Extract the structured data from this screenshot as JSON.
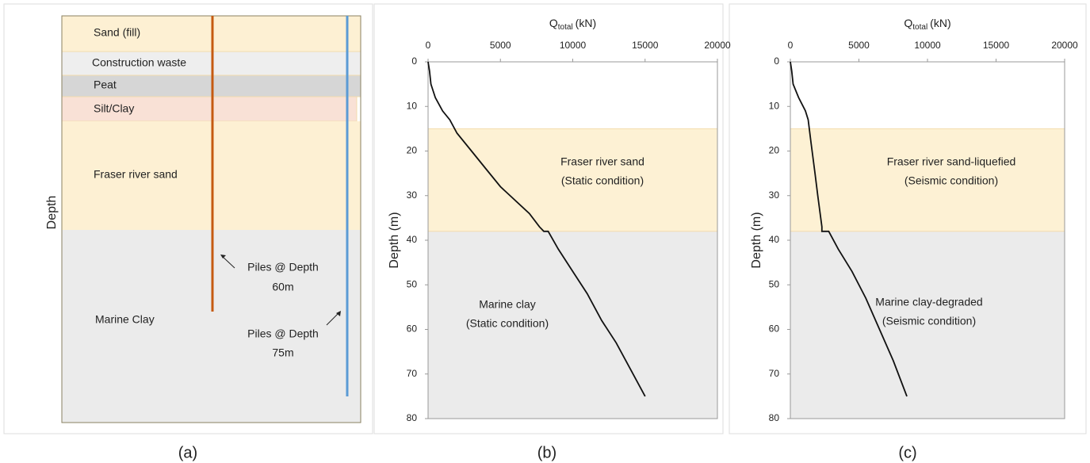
{
  "diagram": {
    "layers": [
      "Sand (fill)",
      "Construction waste",
      "Peat",
      "Silt/Clay",
      "Fraser river sand",
      "Marine Clay"
    ],
    "axis_label": "Depth",
    "piles": [
      {
        "lines": [
          "Piles @ Depth",
          "60m"
        ]
      },
      {
        "lines": [
          "Piles @ Depth",
          "75m"
        ]
      }
    ]
  },
  "captions": [
    "(a)",
    "(b)",
    "(c)"
  ],
  "chart_data": [
    {
      "type": "line",
      "xlabel": {
        "main": "Q",
        "sub": "total",
        "unit": "(kN)"
      },
      "ylabel": "Depth (m)",
      "xlim": [
        0,
        20000
      ],
      "xticks": [
        0,
        5000,
        10000,
        15000,
        20000
      ],
      "ylim": [
        0,
        80
      ],
      "yticks": [
        0,
        10,
        20,
        30,
        40,
        50,
        60,
        70,
        80
      ],
      "y_inverted": true,
      "color": "#111111",
      "bands": [
        {
          "from": 15,
          "to": 38,
          "color": "#fdf1d4",
          "lines": [
            "Fraser river sand",
            "(Static condition)"
          ]
        },
        {
          "from": 38,
          "to": 80,
          "color": "#ebebeb",
          "lines": [
            "Marine clay",
            "(Static condition)"
          ]
        }
      ],
      "x": [
        0,
        100,
        200,
        500,
        1000,
        1500,
        2000,
        3000,
        4000,
        5000,
        6000,
        7000,
        7700,
        8000,
        8300,
        9000,
        10000,
        11000,
        12000,
        13000,
        14000,
        15000
      ],
      "values": [
        0,
        2,
        5,
        8,
        11,
        13,
        16,
        20,
        24,
        28,
        31,
        34,
        37,
        38,
        38,
        42,
        47,
        52,
        58,
        63,
        69,
        75
      ]
    },
    {
      "type": "line",
      "xlabel": {
        "main": "Q",
        "sub": "total",
        "unit": "(kN)"
      },
      "ylabel": "Depth (m)",
      "xlim": [
        0,
        20000
      ],
      "xticks": [
        0,
        5000,
        10000,
        15000,
        20000
      ],
      "ylim": [
        0,
        80
      ],
      "yticks": [
        0,
        10,
        20,
        30,
        40,
        50,
        60,
        70,
        80
      ],
      "y_inverted": true,
      "color": "#111111",
      "bands": [
        {
          "from": 15,
          "to": 38,
          "color": "#fdf1d4",
          "lines": [
            "Fraser river sand-liquefied",
            "(Seismic condition)"
          ]
        },
        {
          "from": 38,
          "to": 80,
          "color": "#ebebeb",
          "lines": [
            "Marine clay-degraded",
            "(Seismic condition)"
          ]
        }
      ],
      "x": [
        0,
        100,
        200,
        600,
        1100,
        1300,
        1500,
        1800,
        2000,
        2300,
        2300,
        2800,
        3500,
        4500,
        5500,
        6500,
        7500,
        8500
      ],
      "values": [
        0,
        2,
        5,
        8,
        11,
        13,
        18,
        25,
        30,
        37,
        38,
        38,
        42,
        47,
        53,
        60,
        67,
        75
      ]
    }
  ]
}
